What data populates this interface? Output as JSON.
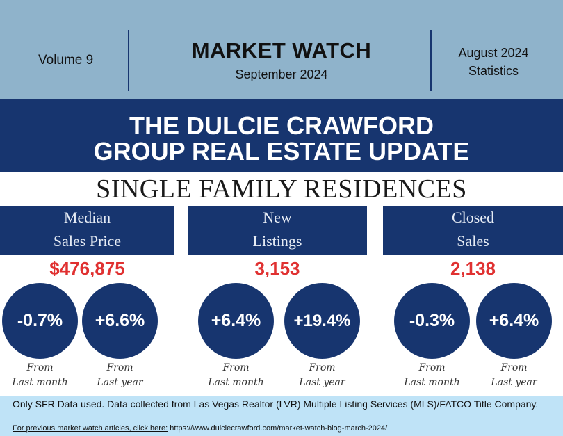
{
  "header": {
    "volume": "Volume 9",
    "title": "MARKET WATCH",
    "subtitle": "September 2024",
    "stats_line1": "August 2024",
    "stats_line2": "Statistics"
  },
  "banner": {
    "line1": "THE DULCIE CRAWFORD",
    "line2": "GROUP REAL ESTATE UPDATE"
  },
  "section_title": "SINGLE FAMILY RESIDENCES",
  "metrics": [
    {
      "label_line1": "Median",
      "label_line2": "Sales Price",
      "value": "$476,875",
      "month_change": "-0.7%",
      "year_change": "+6.6%"
    },
    {
      "label_line1": "New",
      "label_line2": "Listings",
      "value": "3,153",
      "month_change": "+6.4%",
      "year_change": "+19.4%"
    },
    {
      "label_line1": "Closed",
      "label_line2": "Sales",
      "value": "2,138",
      "month_change": "-0.3%",
      "year_change": "+6.4%"
    }
  ],
  "captions": {
    "from": "From",
    "last_month": "Last month",
    "last_year": "Last year"
  },
  "footer": {
    "note": "Only SFR Data used. Data collected from Las Vegas Realtor (LVR) Multiple Listing Services (MLS)/FATCO Title Company.",
    "link_prefix": "For previous market watch articles, click here:",
    "link_url": "https://www.dulciecrawford.com/market-watch-blog-march-2024/"
  },
  "colors": {
    "navy": "#17356f",
    "header_blue": "#8fb3cb",
    "accent_red": "#e03131",
    "footer_blue": "#bfe3f7"
  }
}
